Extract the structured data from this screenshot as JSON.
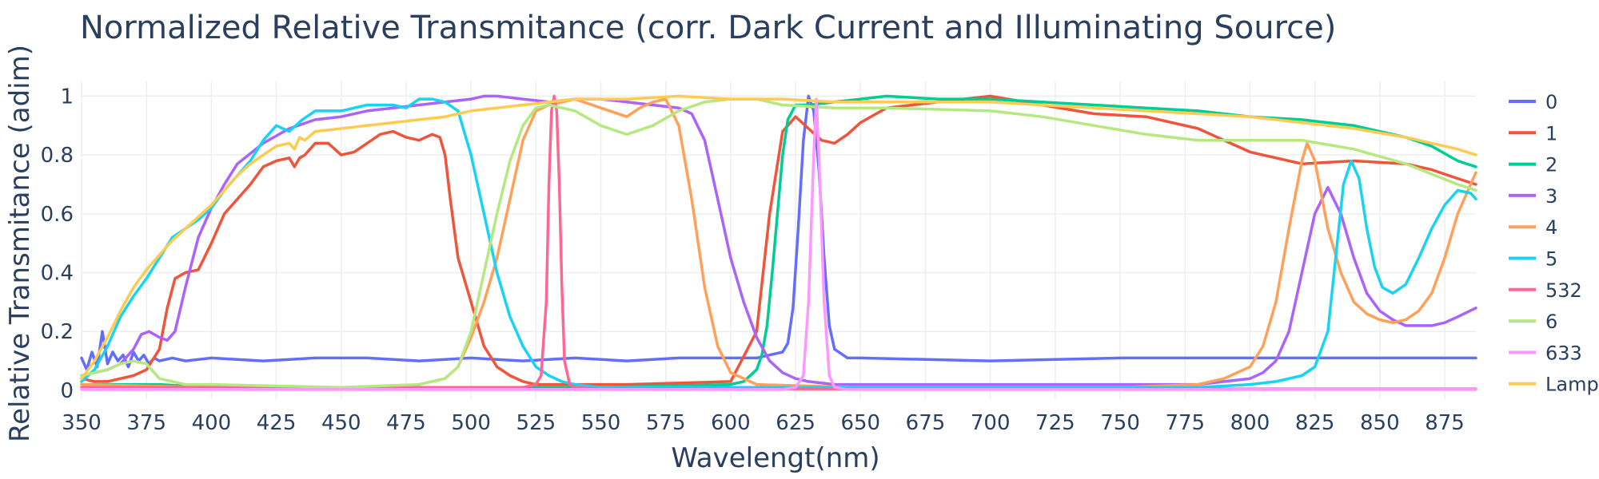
{
  "chart_data": {
    "type": "line",
    "title": "Normalized Relative Transmitance (corr. Dark Current and Illuminating Source)",
    "xlabel": "Wavelengt(nm)",
    "ylabel": "Relative Transmitance (adim)",
    "xlim": [
      350,
      887
    ],
    "ylim": [
      -0.03,
      1.05
    ],
    "xticks": [
      350,
      375,
      400,
      425,
      450,
      475,
      500,
      525,
      550,
      575,
      600,
      625,
      650,
      675,
      700,
      725,
      750,
      775,
      800,
      825,
      850,
      875
    ],
    "yticks": [
      0,
      0.2,
      0.4,
      0.6,
      0.8,
      1
    ],
    "ytick_labels": [
      "0",
      "0.2",
      "0.4",
      "0.6",
      "0.8",
      "1"
    ],
    "grid": true,
    "legend_position": "right",
    "series": [
      {
        "name": "0",
        "color": "#636efa",
        "x": [
          350,
          352,
          354,
          356,
          358,
          360,
          362,
          364,
          366,
          368,
          370,
          372,
          374,
          376,
          378,
          380,
          385,
          390,
          400,
          420,
          440,
          460,
          480,
          500,
          520,
          540,
          560,
          580,
          600,
          610,
          615,
          620,
          622,
          624,
          626,
          628,
          630,
          632,
          634,
          636,
          638,
          640,
          645,
          650,
          700,
          750,
          800,
          850,
          887
        ],
        "y": [
          0.11,
          0.07,
          0.13,
          0.08,
          0.2,
          0.09,
          0.13,
          0.1,
          0.12,
          0.08,
          0.13,
          0.1,
          0.12,
          0.09,
          0.11,
          0.1,
          0.11,
          0.1,
          0.11,
          0.1,
          0.11,
          0.11,
          0.1,
          0.11,
          0.1,
          0.11,
          0.1,
          0.11,
          0.11,
          0.11,
          0.12,
          0.13,
          0.16,
          0.28,
          0.55,
          0.85,
          1.0,
          0.95,
          0.75,
          0.45,
          0.22,
          0.14,
          0.11,
          0.11,
          0.1,
          0.11,
          0.11,
          0.11,
          0.11
        ]
      },
      {
        "name": "1",
        "color": "#ef553b",
        "x": [
          350,
          355,
          360,
          365,
          370,
          375,
          380,
          383,
          386,
          390,
          395,
          400,
          405,
          410,
          415,
          420,
          425,
          430,
          432,
          434,
          436,
          438,
          440,
          445,
          450,
          455,
          460,
          465,
          470,
          475,
          480,
          485,
          488,
          490,
          492,
          495,
          500,
          505,
          510,
          515,
          520,
          525,
          530,
          540,
          560,
          600,
          610,
          615,
          620,
          625,
          630,
          635,
          640,
          645,
          650,
          660,
          680,
          700,
          720,
          740,
          760,
          780,
          800,
          820,
          840,
          860,
          870,
          880,
          887
        ],
        "y": [
          0.04,
          0.03,
          0.03,
          0.04,
          0.05,
          0.07,
          0.14,
          0.28,
          0.38,
          0.4,
          0.41,
          0.5,
          0.6,
          0.65,
          0.7,
          0.76,
          0.78,
          0.79,
          0.76,
          0.79,
          0.8,
          0.82,
          0.84,
          0.84,
          0.8,
          0.81,
          0.84,
          0.87,
          0.88,
          0.86,
          0.85,
          0.87,
          0.86,
          0.8,
          0.65,
          0.45,
          0.3,
          0.15,
          0.08,
          0.05,
          0.03,
          0.02,
          0.02,
          0.02,
          0.02,
          0.03,
          0.2,
          0.6,
          0.88,
          0.93,
          0.89,
          0.85,
          0.84,
          0.87,
          0.91,
          0.96,
          0.98,
          1.0,
          0.97,
          0.94,
          0.93,
          0.89,
          0.81,
          0.77,
          0.78,
          0.77,
          0.75,
          0.72,
          0.7
        ]
      },
      {
        "name": "2",
        "color": "#00cc96",
        "x": [
          350,
          380,
          400,
          450,
          500,
          550,
          600,
          605,
          610,
          612,
          614,
          616,
          618,
          620,
          622,
          625,
          630,
          640,
          650,
          660,
          680,
          700,
          720,
          740,
          760,
          780,
          800,
          820,
          840,
          860,
          870,
          880,
          887
        ],
        "y": [
          0.02,
          0.02,
          0.01,
          0.01,
          0.01,
          0.01,
          0.02,
          0.03,
          0.07,
          0.12,
          0.22,
          0.4,
          0.6,
          0.8,
          0.92,
          0.97,
          0.97,
          0.98,
          0.99,
          1.0,
          0.99,
          0.99,
          0.98,
          0.97,
          0.96,
          0.95,
          0.93,
          0.92,
          0.9,
          0.86,
          0.83,
          0.78,
          0.76
        ]
      },
      {
        "name": "3",
        "color": "#ab63fa",
        "x": [
          350,
          360,
          365,
          370,
          373,
          376,
          380,
          383,
          386,
          390,
          395,
          400,
          405,
          410,
          420,
          430,
          440,
          450,
          460,
          470,
          480,
          490,
          500,
          505,
          510,
          520,
          530,
          540,
          550,
          560,
          570,
          580,
          585,
          590,
          595,
          600,
          605,
          610,
          615,
          620,
          625,
          630,
          640,
          660,
          700,
          750,
          780,
          800,
          805,
          810,
          815,
          820,
          825,
          830,
          835,
          840,
          845,
          850,
          855,
          860,
          865,
          870,
          875,
          880,
          887
        ],
        "y": [
          0.05,
          0.07,
          0.09,
          0.14,
          0.19,
          0.2,
          0.18,
          0.17,
          0.2,
          0.35,
          0.52,
          0.62,
          0.7,
          0.77,
          0.84,
          0.89,
          0.92,
          0.93,
          0.95,
          0.96,
          0.97,
          0.98,
          0.99,
          1.0,
          1.0,
          0.99,
          0.98,
          0.99,
          0.99,
          0.98,
          0.97,
          0.96,
          0.94,
          0.85,
          0.65,
          0.45,
          0.3,
          0.18,
          0.1,
          0.06,
          0.04,
          0.03,
          0.02,
          0.02,
          0.02,
          0.02,
          0.02,
          0.04,
          0.06,
          0.1,
          0.2,
          0.4,
          0.6,
          0.69,
          0.6,
          0.45,
          0.33,
          0.27,
          0.24,
          0.22,
          0.22,
          0.22,
          0.23,
          0.25,
          0.28
        ]
      },
      {
        "name": "4",
        "color": "#ffa15a",
        "x": [
          350,
          400,
          450,
          470,
          480,
          490,
          495,
          500,
          505,
          510,
          515,
          520,
          525,
          530,
          540,
          550,
          560,
          565,
          570,
          575,
          580,
          585,
          590,
          595,
          600,
          610,
          650,
          700,
          750,
          780,
          790,
          800,
          805,
          810,
          815,
          820,
          822,
          825,
          830,
          835,
          840,
          845,
          850,
          855,
          860,
          865,
          870,
          875,
          880,
          887
        ],
        "y": [
          0.02,
          0.01,
          0.01,
          0.01,
          0.02,
          0.04,
          0.08,
          0.18,
          0.3,
          0.45,
          0.65,
          0.85,
          0.95,
          0.97,
          0.99,
          0.96,
          0.93,
          0.96,
          0.98,
          0.99,
          0.9,
          0.65,
          0.35,
          0.15,
          0.06,
          0.02,
          0.01,
          0.01,
          0.01,
          0.02,
          0.04,
          0.08,
          0.15,
          0.3,
          0.55,
          0.78,
          0.84,
          0.78,
          0.55,
          0.4,
          0.3,
          0.26,
          0.24,
          0.23,
          0.24,
          0.27,
          0.33,
          0.45,
          0.6,
          0.74
        ]
      },
      {
        "name": "5",
        "color": "#19d3f3",
        "x": [
          350,
          355,
          360,
          365,
          370,
          375,
          380,
          385,
          390,
          395,
          400,
          405,
          410,
          415,
          420,
          425,
          430,
          435,
          440,
          450,
          460,
          465,
          470,
          475,
          480,
          485,
          490,
          495,
          500,
          505,
          510,
          515,
          520,
          525,
          530,
          535,
          540,
          550,
          600,
          700,
          780,
          800,
          810,
          820,
          825,
          830,
          833,
          836,
          839,
          842,
          845,
          848,
          851,
          855,
          860,
          865,
          870,
          875,
          880,
          885,
          887
        ],
        "y": [
          0.03,
          0.07,
          0.15,
          0.25,
          0.32,
          0.38,
          0.45,
          0.52,
          0.55,
          0.58,
          0.62,
          0.68,
          0.73,
          0.78,
          0.85,
          0.9,
          0.88,
          0.92,
          0.95,
          0.95,
          0.97,
          0.97,
          0.97,
          0.96,
          0.99,
          0.99,
          0.98,
          0.95,
          0.8,
          0.6,
          0.4,
          0.25,
          0.15,
          0.08,
          0.05,
          0.03,
          0.02,
          0.01,
          0.01,
          0.01,
          0.01,
          0.02,
          0.03,
          0.05,
          0.08,
          0.2,
          0.45,
          0.7,
          0.78,
          0.72,
          0.55,
          0.42,
          0.35,
          0.33,
          0.36,
          0.45,
          0.55,
          0.63,
          0.68,
          0.67,
          0.65
        ]
      },
      {
        "name": "532",
        "color": "#ff6692",
        "x": [
          350,
          400,
          500,
          520,
          525,
          527,
          529,
          530,
          531,
          532,
          533,
          534,
          535,
          536,
          538,
          540,
          550,
          600,
          700,
          800,
          887
        ],
        "y": [
          0.01,
          0.01,
          0.01,
          0.01,
          0.02,
          0.05,
          0.3,
          0.7,
          0.95,
          1.0,
          0.95,
          0.7,
          0.35,
          0.1,
          0.02,
          0.01,
          0.005,
          0.005,
          0.005,
          0.005,
          0.005
        ]
      },
      {
        "name": "6",
        "color": "#b6e880",
        "x": [
          350,
          360,
          365,
          370,
          375,
          380,
          390,
          400,
          450,
          480,
          490,
          495,
          500,
          505,
          510,
          515,
          520,
          525,
          530,
          540,
          550,
          560,
          570,
          580,
          590,
          600,
          610,
          620,
          640,
          660,
          700,
          720,
          740,
          760,
          780,
          800,
          820,
          840,
          860,
          880,
          887
        ],
        "y": [
          0.05,
          0.07,
          0.09,
          0.1,
          0.09,
          0.04,
          0.02,
          0.02,
          0.01,
          0.02,
          0.04,
          0.08,
          0.2,
          0.4,
          0.6,
          0.78,
          0.9,
          0.96,
          0.97,
          0.95,
          0.9,
          0.87,
          0.9,
          0.95,
          0.98,
          0.99,
          0.99,
          0.97,
          0.96,
          0.96,
          0.95,
          0.93,
          0.9,
          0.87,
          0.85,
          0.85,
          0.85,
          0.82,
          0.77,
          0.7,
          0.68
        ]
      },
      {
        "name": "633",
        "color": "#ff97ff",
        "x": [
          350,
          600,
          620,
          625,
          628,
          630,
          632,
          633,
          634,
          636,
          638,
          640,
          645,
          700,
          800,
          887
        ],
        "y": [
          0.003,
          0.003,
          0.003,
          0.01,
          0.05,
          0.3,
          0.8,
          0.99,
          0.8,
          0.3,
          0.05,
          0.01,
          0.003,
          0.003,
          0.003,
          0.003
        ]
      },
      {
        "name": "Lamp",
        "color": "#fecb52",
        "x": [
          350,
          355,
          360,
          365,
          370,
          375,
          380,
          385,
          390,
          395,
          400,
          405,
          410,
          415,
          420,
          425,
          430,
          432,
          434,
          436,
          440,
          450,
          460,
          470,
          480,
          490,
          500,
          520,
          540,
          560,
          580,
          600,
          620,
          640,
          660,
          680,
          700,
          720,
          740,
          760,
          780,
          800,
          820,
          840,
          860,
          880,
          887
        ],
        "y": [
          0.04,
          0.1,
          0.18,
          0.27,
          0.35,
          0.41,
          0.46,
          0.51,
          0.55,
          0.59,
          0.63,
          0.68,
          0.73,
          0.77,
          0.8,
          0.83,
          0.84,
          0.82,
          0.86,
          0.85,
          0.88,
          0.89,
          0.9,
          0.91,
          0.92,
          0.93,
          0.95,
          0.97,
          0.99,
          0.99,
          1.0,
          0.99,
          0.99,
          0.98,
          0.98,
          0.98,
          0.98,
          0.97,
          0.96,
          0.95,
          0.94,
          0.93,
          0.91,
          0.89,
          0.86,
          0.82,
          0.8
        ]
      }
    ]
  }
}
